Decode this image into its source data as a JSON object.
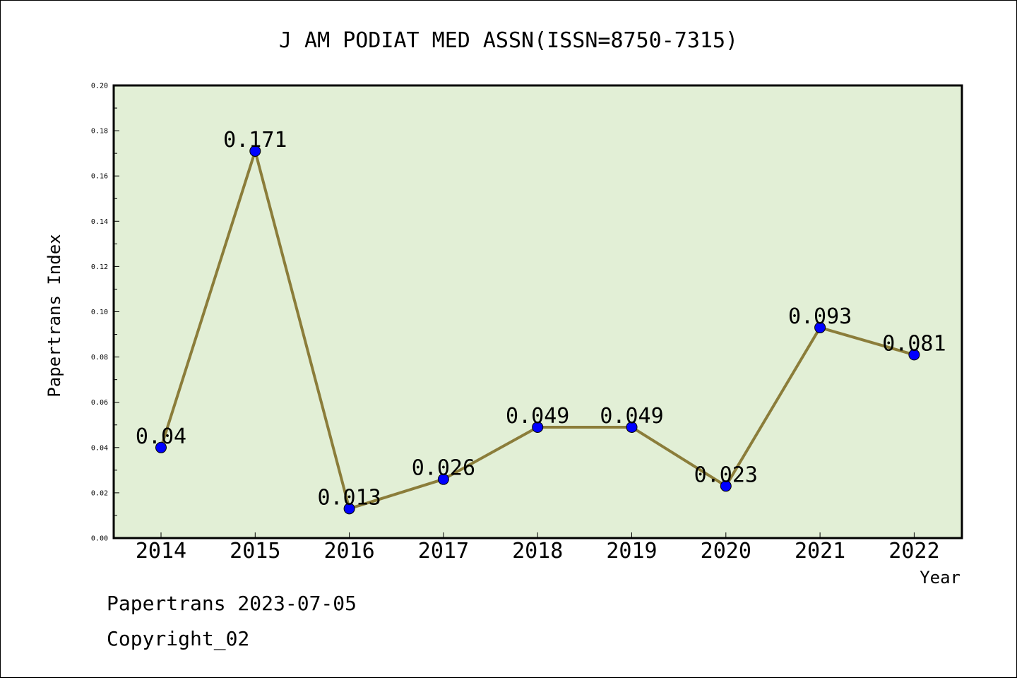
{
  "chart_data": {
    "type": "line",
    "title": "J AM PODIAT MED ASSN(ISSN=8750-7315)",
    "xlabel": "Year",
    "ylabel": "Papertrans Index",
    "categories": [
      "2014",
      "2015",
      "2016",
      "2017",
      "2018",
      "2019",
      "2020",
      "2021",
      "2022"
    ],
    "series": [
      {
        "values": [
          0.04,
          0.171,
          0.013,
          0.026,
          0.049,
          0.049,
          0.023,
          0.093,
          0.081
        ],
        "labels": [
          "0.04",
          "0.171",
          "0.013",
          "0.026",
          "0.049",
          "0.049",
          "0.023",
          "0.093",
          "0.081"
        ]
      }
    ],
    "ylim": [
      0,
      0.2
    ],
    "yticks": [
      "0.00",
      "0.02",
      "0.04",
      "0.06",
      "0.08",
      "0.10",
      "0.12",
      "0.14",
      "0.16",
      "0.18",
      "0.20"
    ],
    "grid": false,
    "colors": {
      "plot_background": "#e2efd6",
      "line": "#8b7d3a",
      "marker": "#0000ff"
    }
  },
  "footer": {
    "line1": "Papertrans 2023-07-05",
    "line2": "Copyright_02"
  }
}
